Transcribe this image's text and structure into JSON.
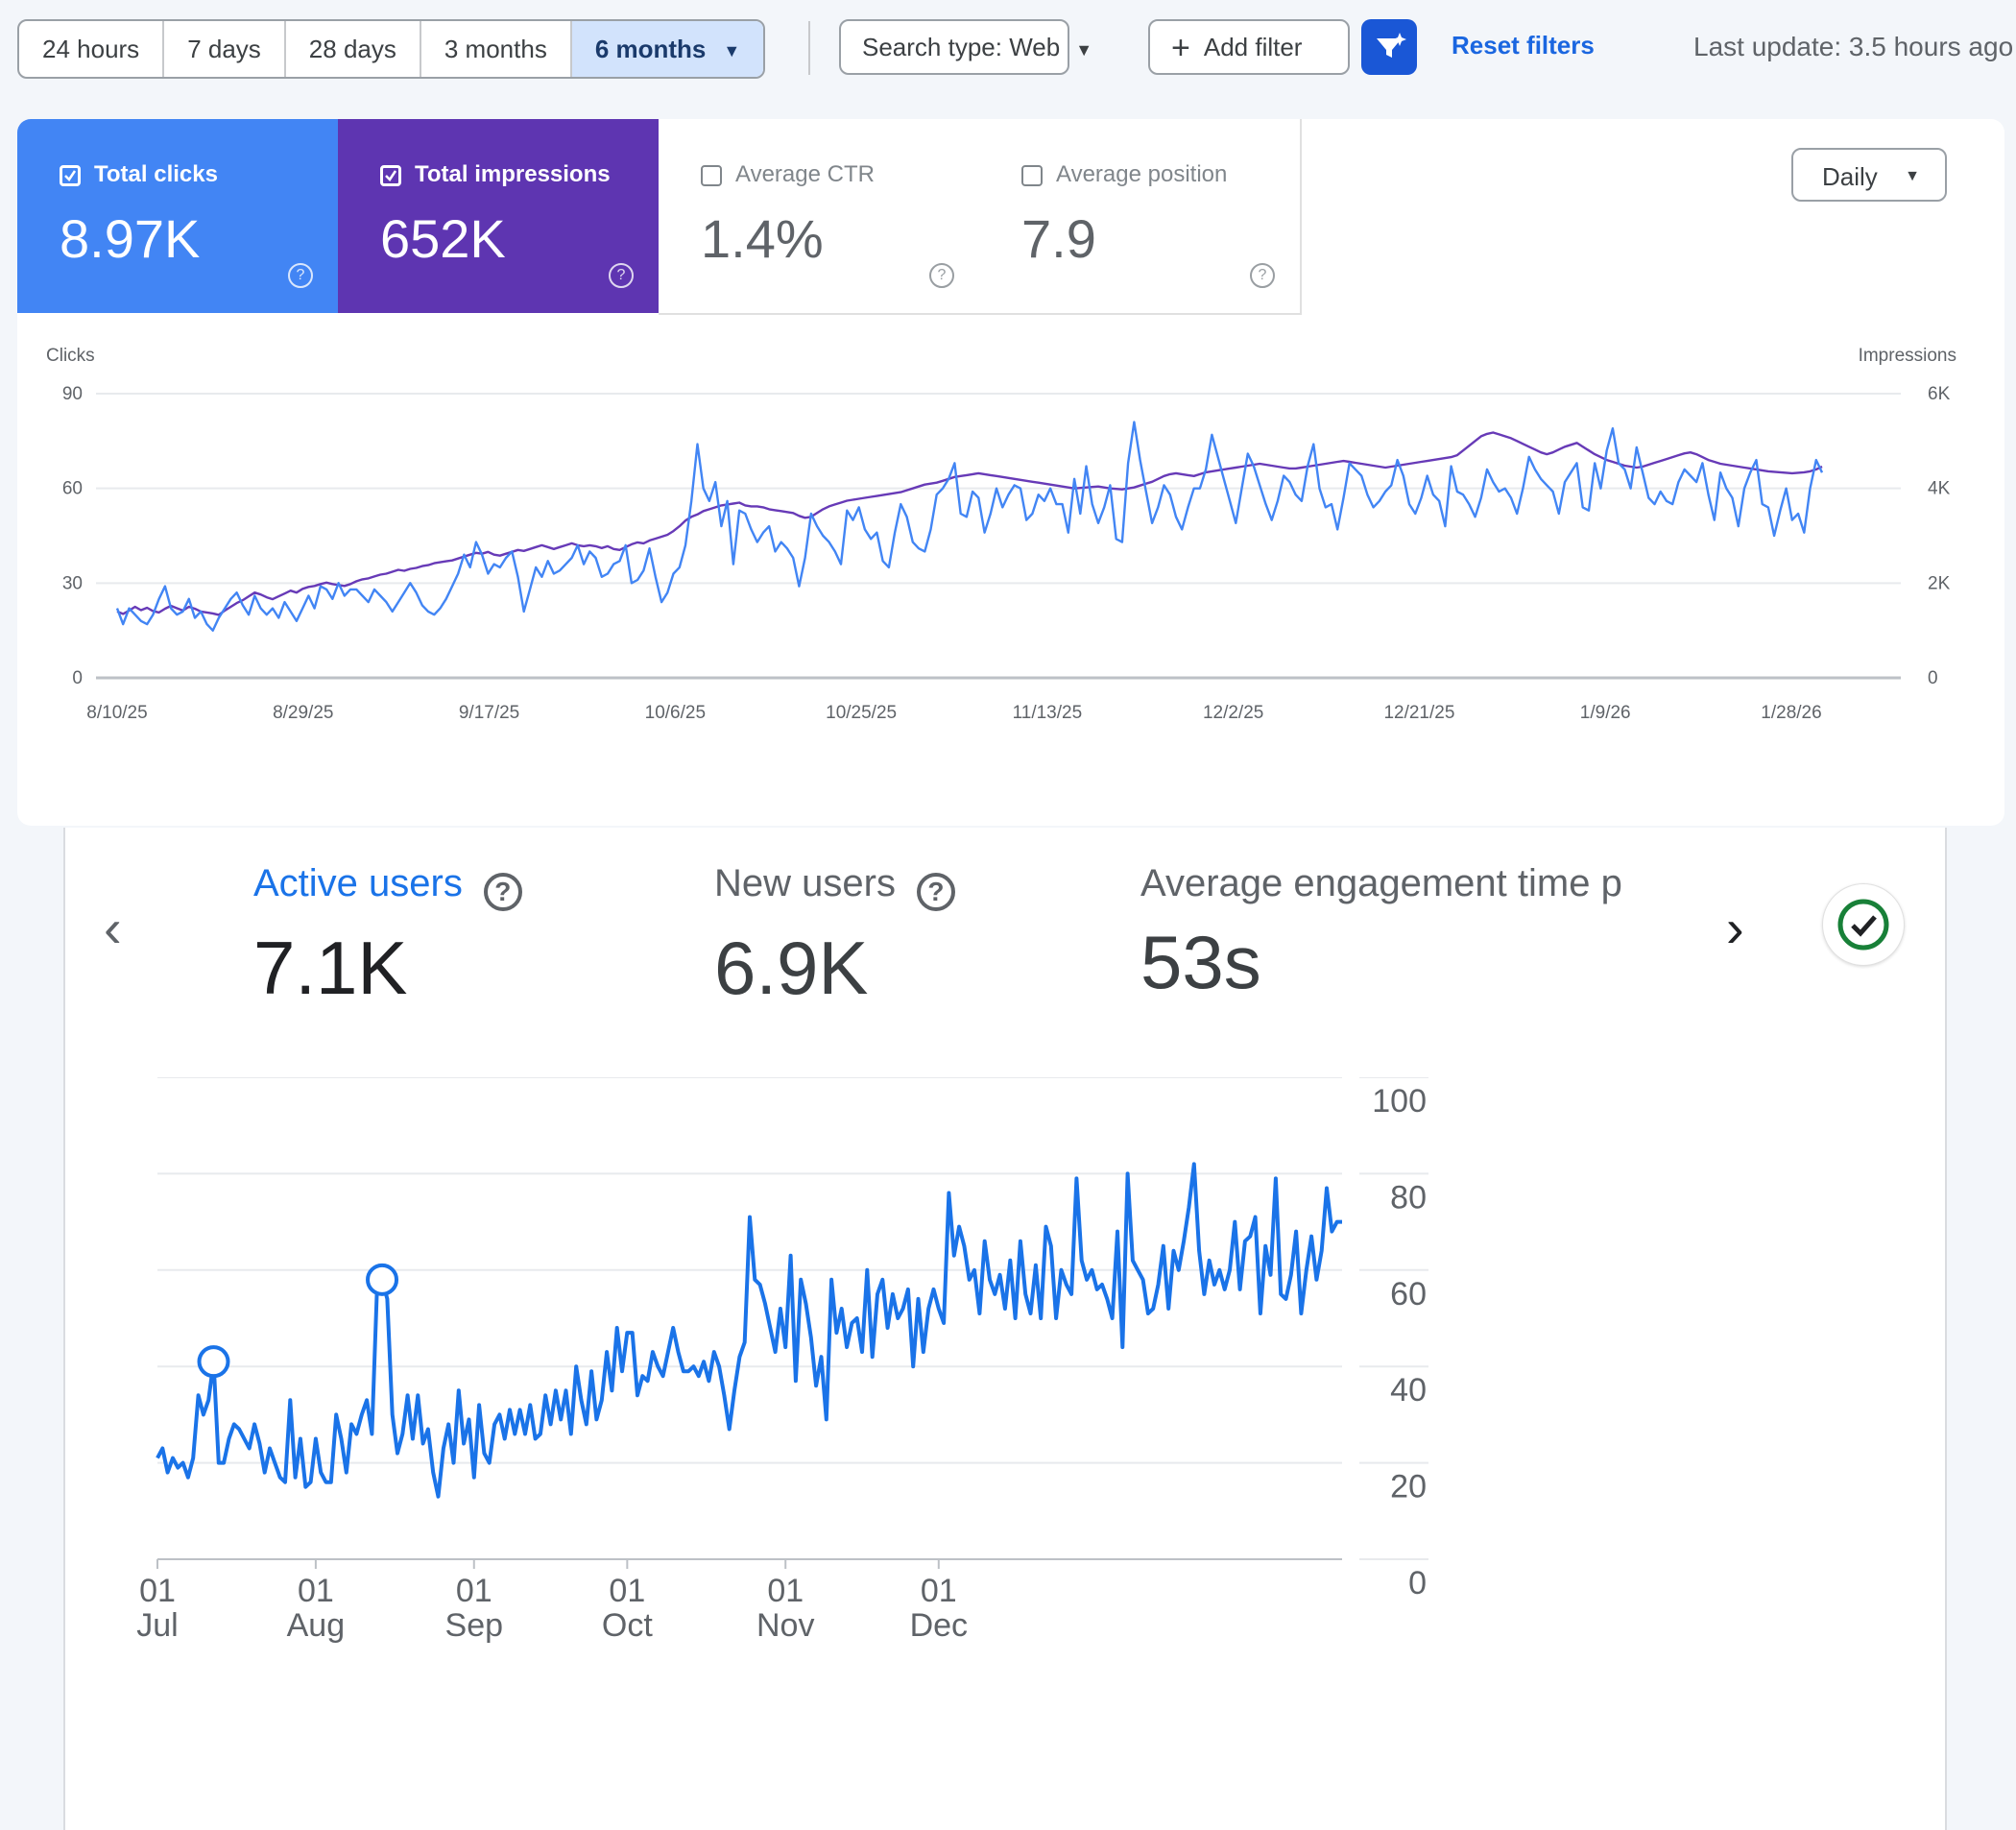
{
  "toolbar": {
    "ranges": [
      "24 hours",
      "7 days",
      "28 days",
      "3 months",
      "6 months"
    ],
    "active_range": "6 months",
    "search_type": "Search type: Web",
    "add_filter": "Add filter",
    "reset_filters": "Reset filters",
    "last_update": "Last update: 3.5 hours ago"
  },
  "search_console": {
    "metrics": [
      {
        "label": "Total clicks",
        "value": "8.97K",
        "checked": true,
        "color": "#4285f4"
      },
      {
        "label": "Total impressions",
        "value": "652K",
        "checked": true,
        "color": "#5e35b1"
      },
      {
        "label": "Average CTR",
        "value": "1.4%",
        "checked": false
      },
      {
        "label": "Average position",
        "value": "7.9",
        "checked": false
      }
    ],
    "granularity": "Daily"
  },
  "analytics": {
    "metrics": [
      {
        "label": "Active users",
        "value": "7.1K"
      },
      {
        "label": "New users",
        "value": "6.9K"
      },
      {
        "label": "Average engagement time p",
        "value": "53s"
      }
    ],
    "check_icon": "check-circle-icon",
    "nav_icons": [
      "chevron-left-icon",
      "chevron-right-icon"
    ]
  },
  "chart_data": [
    {
      "type": "line",
      "ylabel": "Clicks",
      "y2label": "Impressions",
      "ylim": [
        0,
        90
      ],
      "y2lim": [
        0,
        6000
      ],
      "yticks": [
        "0",
        "30",
        "60",
        "90"
      ],
      "y2ticks": [
        "0",
        "2K",
        "4K",
        "6K"
      ],
      "xticks": [
        "8/10/25",
        "8/29/25",
        "9/17/25",
        "10/6/25",
        "10/25/25",
        "11/13/25",
        "12/2/25",
        "12/21/25",
        "1/9/26",
        "1/28/26"
      ],
      "grid": true,
      "series": [
        {
          "name": "Clicks",
          "color": "#4285f4",
          "axis": "left",
          "values": [
            22,
            17,
            22,
            20,
            18,
            17,
            20,
            25,
            29,
            22,
            20,
            21,
            25,
            19,
            21,
            17,
            15,
            19,
            22,
            25,
            27,
            23,
            20,
            26,
            22,
            20,
            22,
            19,
            24,
            21,
            18,
            22,
            26,
            22,
            29,
            28,
            25,
            30,
            26,
            28,
            28,
            26,
            24,
            28,
            26,
            24,
            21,
            24,
            27,
            30,
            27,
            23,
            21,
            20,
            22,
            25,
            29,
            33,
            39,
            35,
            43,
            39,
            33,
            36,
            35,
            38,
            40,
            32,
            21,
            28,
            35,
            32,
            37,
            33,
            34,
            36,
            38,
            42,
            36,
            40,
            38,
            32,
            33,
            36,
            37,
            42,
            30,
            31,
            34,
            41,
            32,
            24,
            27,
            33,
            35,
            42,
            56,
            74,
            60,
            56,
            62,
            48,
            56,
            36,
            53,
            52,
            47,
            43,
            46,
            48,
            40,
            43,
            41,
            38,
            29,
            38,
            52,
            48,
            45,
            43,
            40,
            36,
            53,
            50,
            54,
            47,
            44,
            46,
            37,
            35,
            46,
            55,
            51,
            43,
            41,
            40,
            47,
            58,
            60,
            63,
            68,
            52,
            51,
            59,
            57,
            46,
            52,
            60,
            54,
            58,
            61,
            60,
            50,
            52,
            58,
            56,
            60,
            55,
            55,
            46,
            63,
            52,
            67,
            55,
            49,
            54,
            61,
            44,
            43,
            68,
            81,
            69,
            59,
            49,
            54,
            61,
            58,
            51,
            47,
            54,
            60,
            60,
            66,
            77,
            70,
            63,
            56,
            49,
            60,
            71,
            67,
            61,
            55,
            50,
            56,
            64,
            62,
            58,
            56,
            67,
            74,
            60,
            54,
            55,
            47,
            57,
            68,
            66,
            64,
            58,
            54,
            56,
            59,
            61,
            69,
            64,
            55,
            52,
            57,
            64,
            58,
            56,
            48,
            67,
            59,
            58,
            55,
            51,
            57,
            66,
            62,
            59,
            60,
            57,
            52,
            60,
            70,
            66,
            63,
            61,
            59,
            52,
            62,
            65,
            68,
            54,
            53,
            68,
            60,
            72,
            79,
            68,
            66,
            60,
            73,
            65,
            57,
            55,
            59,
            56,
            55,
            62,
            66,
            64,
            62,
            68,
            58,
            50,
            65,
            60,
            57,
            48,
            60,
            65,
            69,
            55,
            54,
            45,
            53,
            60,
            50,
            52,
            46,
            60,
            69,
            65
          ]
        },
        {
          "name": "Impressions",
          "color": "#673ab7",
          "axis": "right",
          "values": [
            1400,
            1350,
            1420,
            1500,
            1430,
            1480,
            1410,
            1380,
            1460,
            1520,
            1470,
            1420,
            1500,
            1460,
            1400,
            1380,
            1360,
            1330,
            1420,
            1500,
            1580,
            1640,
            1720,
            1800,
            1760,
            1700,
            1660,
            1720,
            1780,
            1840,
            1800,
            1880,
            1920,
            1940,
            1980,
            2010,
            1980,
            1960,
            1940,
            1980,
            2040,
            2080,
            2100,
            2140,
            2180,
            2200,
            2240,
            2280,
            2260,
            2300,
            2320,
            2360,
            2380,
            2420,
            2440,
            2460,
            2480,
            2520,
            2560,
            2600,
            2640,
            2620,
            2660,
            2600,
            2580,
            2620,
            2660,
            2700,
            2680,
            2720,
            2760,
            2800,
            2760,
            2720,
            2760,
            2800,
            2840,
            2800,
            2780,
            2800,
            2780,
            2740,
            2780,
            2720,
            2700,
            2760,
            2820,
            2860,
            2840,
            2900,
            2940,
            2980,
            3020,
            3100,
            3200,
            3320,
            3400,
            3450,
            3520,
            3560,
            3600,
            3640,
            3660,
            3680,
            3700,
            3640,
            3620,
            3620,
            3600,
            3560,
            3540,
            3520,
            3500,
            3480,
            3420,
            3380,
            3400,
            3480,
            3560,
            3620,
            3660,
            3700,
            3740,
            3760,
            3780,
            3800,
            3820,
            3840,
            3860,
            3880,
            3900,
            3920,
            3960,
            4000,
            4040,
            4080,
            4100,
            4120,
            4160,
            4200,
            4240,
            4260,
            4280,
            4300,
            4320,
            4300,
            4280,
            4260,
            4240,
            4220,
            4200,
            4180,
            4160,
            4140,
            4120,
            4100,
            4080,
            4060,
            4040,
            4020,
            4000,
            4010,
            4020,
            4030,
            4040,
            4020,
            4000,
            3990,
            3980,
            4000,
            4020,
            4060,
            4100,
            4140,
            4200,
            4260,
            4300,
            4320,
            4300,
            4280,
            4260,
            4300,
            4340,
            4360,
            4380,
            4400,
            4420,
            4440,
            4460,
            4480,
            4500,
            4520,
            4500,
            4480,
            4460,
            4440,
            4420,
            4420,
            4440,
            4460,
            4480,
            4500,
            4520,
            4540,
            4560,
            4580,
            4560,
            4540,
            4520,
            4500,
            4480,
            4460,
            4440,
            4460,
            4480,
            4500,
            4520,
            4540,
            4560,
            4580,
            4600,
            4620,
            4640,
            4660,
            4700,
            4800,
            4900,
            5000,
            5100,
            5150,
            5180,
            5140,
            5100,
            5060,
            5000,
            4940,
            4880,
            4820,
            4760,
            4720,
            4760,
            4820,
            4880,
            4920,
            4960,
            4880,
            4800,
            4720,
            4660,
            4600,
            4560,
            4520,
            4480,
            4460,
            4440,
            4460,
            4500,
            4540,
            4580,
            4620,
            4660,
            4700,
            4740,
            4760,
            4720,
            4660,
            4600,
            4560,
            4520,
            4500,
            4480,
            4460,
            4440,
            4420,
            4400,
            4380,
            4360,
            4350,
            4340,
            4330,
            4320,
            4330,
            4340,
            4360,
            4400,
            4460
          ]
        }
      ]
    },
    {
      "type": "line",
      "ylim": [
        0,
        100
      ],
      "yticks": [
        "0",
        "20",
        "40",
        "60",
        "80",
        "100"
      ],
      "xticks": [
        [
          "01",
          "Jul"
        ],
        [
          "01",
          "Aug"
        ],
        [
          "01",
          "Sep"
        ],
        [
          "01",
          "Oct"
        ],
        [
          "01",
          "Nov"
        ],
        [
          "01",
          "Dec"
        ]
      ],
      "grid": true,
      "series": [
        {
          "name": "Active users",
          "color": "#1a73e8",
          "values": [
            21,
            23,
            18,
            21,
            19,
            20,
            17,
            21,
            34,
            30,
            33,
            41,
            20,
            20,
            25,
            28,
            27,
            25,
            23,
            28,
            24,
            18,
            23,
            20,
            17,
            16,
            33,
            17,
            25,
            15,
            16,
            25,
            18,
            16,
            16,
            30,
            25,
            18,
            28,
            26,
            30,
            33,
            26,
            56,
            58,
            54,
            30,
            22,
            26,
            34,
            25,
            34,
            24,
            27,
            18,
            13,
            23,
            28,
            20,
            35,
            24,
            29,
            17,
            32,
            22,
            20,
            28,
            30,
            25,
            31,
            26,
            31,
            26,
            32,
            25,
            26,
            34,
            28,
            35,
            29,
            35,
            26,
            40,
            33,
            28,
            39,
            29,
            33,
            43,
            35,
            48,
            39,
            47,
            47,
            34,
            38,
            37,
            43,
            40,
            38,
            43,
            48,
            43,
            39,
            39,
            40,
            38,
            41,
            37,
            43,
            40,
            34,
            27,
            35,
            42,
            45,
            71,
            58,
            57,
            53,
            48,
            43,
            52,
            44,
            63,
            37,
            58,
            53,
            46,
            36,
            42,
            29,
            58,
            47,
            52,
            44,
            49,
            50,
            43,
            60,
            42,
            55,
            58,
            48,
            55,
            50,
            52,
            56,
            40,
            54,
            43,
            52,
            56,
            52,
            49,
            76,
            63,
            69,
            65,
            58,
            60,
            51,
            66,
            58,
            55,
            59,
            52,
            62,
            50,
            66,
            55,
            51,
            61,
            50,
            69,
            65,
            50,
            60,
            57,
            55,
            79,
            62,
            58,
            60,
            56,
            57,
            54,
            50,
            68,
            44,
            80,
            62,
            60,
            58,
            51,
            52,
            57,
            65,
            52,
            64,
            60,
            66,
            73,
            82,
            64,
            55,
            62,
            57,
            60,
            56,
            60,
            70,
            56,
            66,
            67,
            71,
            51,
            65,
            59,
            79,
            55,
            54,
            59,
            68,
            51,
            60,
            67,
            58,
            64,
            77,
            68,
            70,
            70
          ]
        }
      ],
      "annotations": [
        {
          "x_index": 11,
          "marker": "circle"
        },
        {
          "x_index": 44,
          "marker": "circle"
        }
      ]
    }
  ]
}
